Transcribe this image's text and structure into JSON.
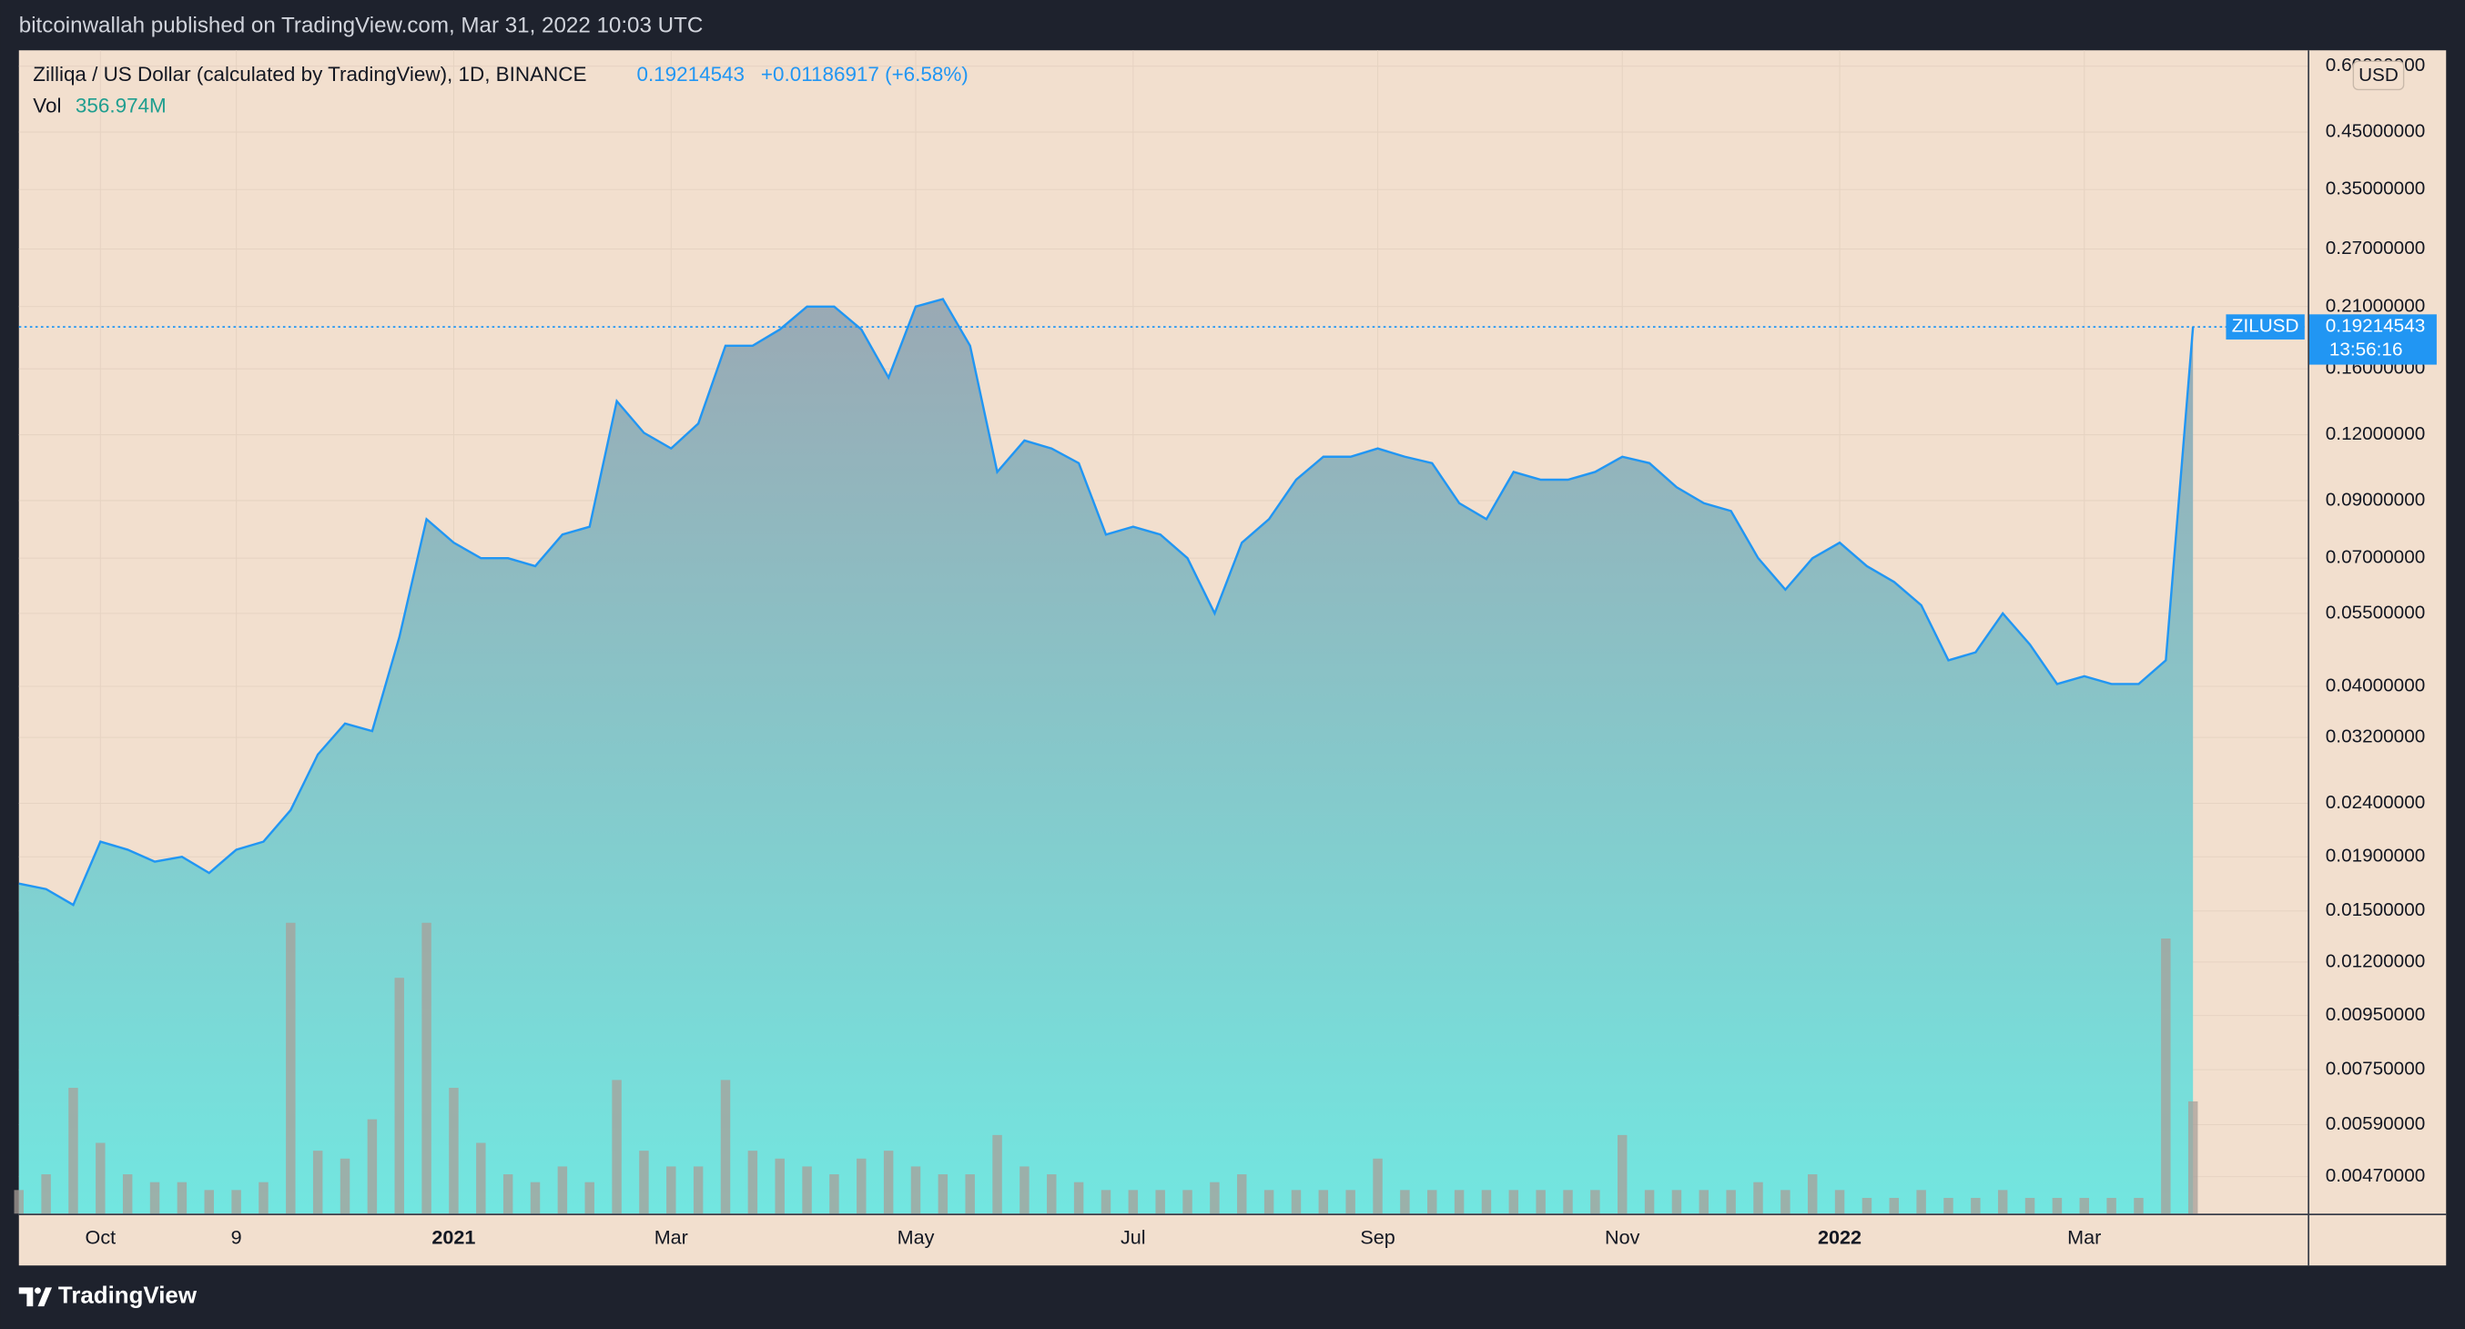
{
  "header": {
    "published": "bitcoinwallah published on TradingView.com, Mar 31, 2022 10:03 UTC"
  },
  "footer": {
    "brand": "TradingView"
  },
  "chart_data": {
    "type": "area",
    "title": "Zilliqa / US Dollar (calculated by TradingView), 1D, BINANCE",
    "price_change": "+0.01186917 (+6.58%)",
    "currency": "USD",
    "countdown": "13:56:16",
    "log_scale": true,
    "grid": true,
    "categories": [
      null,
      null,
      null,
      "Oct",
      null,
      null,
      null,
      null,
      "9",
      null,
      null,
      null,
      null,
      null,
      null,
      null,
      "2021",
      null,
      null,
      null,
      null,
      null,
      null,
      null,
      "Mar",
      null,
      null,
      null,
      null,
      null,
      null,
      null,
      null,
      "May",
      null,
      null,
      null,
      null,
      null,
      null,
      null,
      "Jul",
      null,
      null,
      null,
      null,
      null,
      null,
      null,
      null,
      "Sep",
      null,
      null,
      null,
      null,
      null,
      null,
      null,
      null,
      "Nov",
      null,
      null,
      null,
      null,
      null,
      null,
      null,
      "2022",
      null,
      null,
      null,
      null,
      null,
      null,
      null,
      null,
      "Mar",
      null,
      null,
      null,
      null
    ],
    "series": [
      {
        "name": "ZILUSD",
        "color": "#2196f3",
        "values": [
          0.0169,
          0.0165,
          0.0154,
          0.0203,
          0.0196,
          0.0186,
          0.019,
          0.0177,
          0.0196,
          0.0203,
          0.0233,
          0.0297,
          0.034,
          0.0329,
          0.0496,
          0.083,
          0.0749,
          0.07,
          0.07,
          0.0676,
          0.0776,
          0.0803,
          0.139,
          0.121,
          0.113,
          0.126,
          0.177,
          0.177,
          0.19,
          0.21,
          0.21,
          0.19,
          0.154,
          0.21,
          0.217,
          0.177,
          0.102,
          0.117,
          0.113,
          0.106,
          0.0776,
          0.0803,
          0.0776,
          0.07,
          0.055,
          0.0749,
          0.083,
          0.0986,
          0.109,
          0.109,
          0.113,
          0.109,
          0.106,
          0.089,
          0.083,
          0.102,
          0.0986,
          0.0986,
          0.102,
          0.109,
          0.106,
          0.0954,
          0.089,
          0.086,
          0.07,
          0.061,
          0.07,
          0.0749,
          0.0676,
          0.0631,
          0.057,
          0.0448,
          0.0464,
          0.055,
          0.048,
          0.0404,
          0.0418,
          0.0404,
          0.0404,
          0.0448,
          0.19214543
        ]
      },
      {
        "name": "Vol",
        "type": "bar",
        "axis": "y2",
        "color": "#a89f98",
        "values": [
          75,
          125,
          400,
          225,
          125,
          100,
          100,
          75,
          75,
          100,
          925,
          200,
          175,
          300,
          750,
          925,
          400,
          225,
          125,
          100,
          150,
          100,
          425,
          200,
          150,
          150,
          425,
          200,
          175,
          150,
          125,
          175,
          200,
          150,
          125,
          125,
          250,
          150,
          125,
          100,
          75,
          75,
          75,
          75,
          100,
          125,
          75,
          75,
          75,
          75,
          175,
          75,
          75,
          75,
          75,
          75,
          75,
          75,
          75,
          250,
          75,
          75,
          75,
          75,
          100,
          75,
          125,
          75,
          50,
          50,
          75,
          50,
          50,
          75,
          50,
          50,
          50,
          50,
          50,
          875,
          356.974
        ],
        "last_value_label": "356.974M"
      }
    ],
    "ylim": [
      0.004,
      0.643
    ],
    "yticks": [
      {
        "value": 0.6,
        "label": "0.60000000"
      },
      {
        "value": 0.45,
        "label": "0.45000000"
      },
      {
        "value": 0.35,
        "label": "0.35000000"
      },
      {
        "value": 0.27,
        "label": "0.27000000"
      },
      {
        "value": 0.21,
        "label": "0.21000000"
      },
      {
        "value": 0.16,
        "label": "0.16000000"
      },
      {
        "value": 0.12,
        "label": "0.12000000"
      },
      {
        "value": 0.09,
        "label": "0.09000000"
      },
      {
        "value": 0.07,
        "label": "0.07000000"
      },
      {
        "value": 0.055,
        "label": "0.05500000"
      },
      {
        "value": 0.04,
        "label": "0.04000000"
      },
      {
        "value": 0.032,
        "label": "0.03200000"
      },
      {
        "value": 0.024,
        "label": "0.02400000"
      },
      {
        "value": 0.019,
        "label": "0.01900000"
      },
      {
        "value": 0.015,
        "label": "0.01500000"
      },
      {
        "value": 0.012,
        "label": "0.01200000"
      },
      {
        "value": 0.0095,
        "label": "0.00950000"
      },
      {
        "value": 0.0075,
        "label": "0.00750000"
      },
      {
        "value": 0.0059,
        "label": "0.00590000"
      },
      {
        "value": 0.0047,
        "label": "0.00470000"
      }
    ],
    "y2lim": [
      0,
      3700
    ]
  }
}
